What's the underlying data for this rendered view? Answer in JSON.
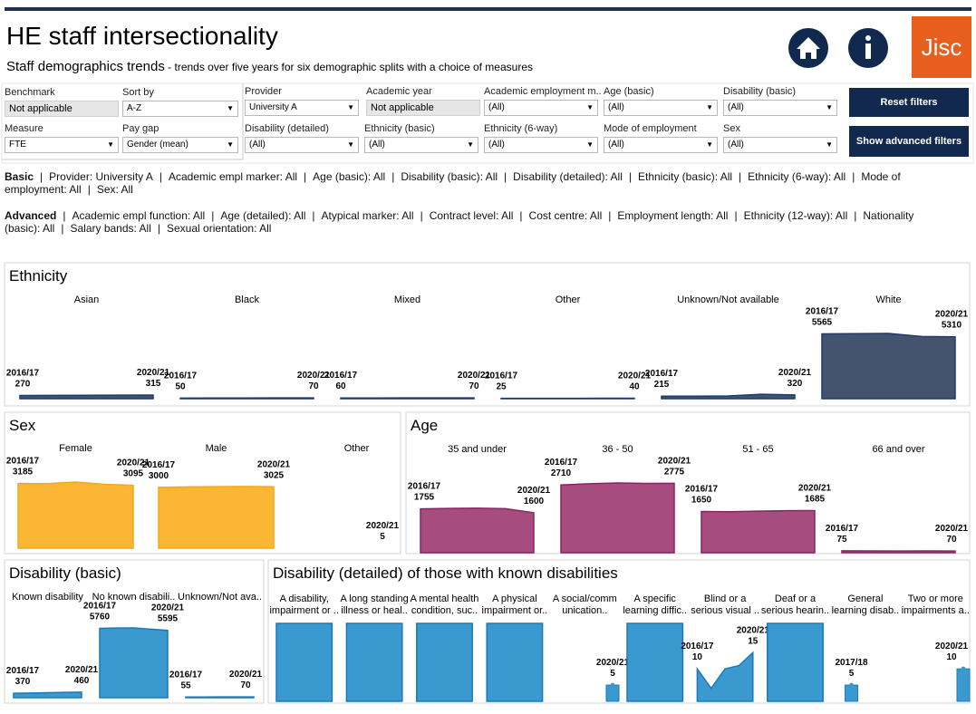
{
  "header": {
    "title": "HE staff intersectionality",
    "subtitle_bold": "Staff demographics trends",
    "subtitle": " - trends over five years for six demographic splits with a choice of measures",
    "logo": "Jisc"
  },
  "filters": [
    {
      "label": "Benchmark",
      "value": "Not applicable",
      "disabled": true
    },
    {
      "label": "Sort by",
      "value": "A-Z"
    },
    {
      "label": "Provider",
      "value": "University A"
    },
    {
      "label": "Academic year",
      "value": "Not applicable",
      "disabled": true
    },
    {
      "label": "Academic employment m..",
      "value": "(All)"
    },
    {
      "label": "Age (basic)",
      "value": "(All)"
    },
    {
      "label": "Disability (basic)",
      "value": "(All)"
    },
    {
      "label": "Measure",
      "value": "FTE"
    },
    {
      "label": "Pay gap",
      "value": "Gender (mean)"
    },
    {
      "label": "Disability (detailed)",
      "value": "(All)"
    },
    {
      "label": "Ethnicity (basic)",
      "value": "(All)"
    },
    {
      "label": "Ethnicity (6-way)",
      "value": "(All)"
    },
    {
      "label": "Mode of employment",
      "value": "(All)"
    },
    {
      "label": "Sex",
      "value": "(All)"
    }
  ],
  "buttons": [
    "Reset filters",
    "Show advanced filters"
  ],
  "summaries": [
    {
      "label": "Basic",
      "items": [
        "Provider: University A",
        "Academic empl marker: All",
        "Age (basic): All",
        "Disability (basic): All",
        "Disability (detailed): All",
        "Ethnicity (basic): All",
        "Ethnicity (6-way): All",
        "Mode of employment: All",
        "Sex: All"
      ]
    },
    {
      "label": "Advanced",
      "items": [
        "Academic empl function: All",
        "Age (detailed): All",
        "Atypical marker: All",
        "Contract level: All",
        "Cost centre: All",
        "Employment length: All",
        "Ethnicity (12-way): All",
        "Nationality (basic): All",
        "Salary bands: All",
        "Sexual orientation: All"
      ]
    }
  ],
  "panels": [
    {
      "type": "area",
      "title": "Ethnicity",
      "color": "#44546f",
      "line": "#1f3a6a",
      "items": [
        {
          "name": [
            "Asian"
          ],
          "years": [
            "2016/17",
            null,
            null,
            null,
            "2020/21"
          ],
          "values": [
            270,
            285,
            295,
            305,
            315
          ]
        },
        {
          "name": [
            "Black"
          ],
          "years": [
            "2016/17",
            null,
            null,
            null,
            "2020/21"
          ],
          "values": [
            50,
            55,
            60,
            65,
            70
          ]
        },
        {
          "name": [
            "Mixed"
          ],
          "years": [
            "2016/17",
            null,
            null,
            null,
            "2020/21"
          ],
          "values": [
            60,
            62,
            65,
            68,
            70
          ]
        },
        {
          "name": [
            "Other"
          ],
          "years": [
            "2016/17",
            null,
            null,
            null,
            "2020/21"
          ],
          "values": [
            25,
            28,
            32,
            36,
            40
          ]
        },
        {
          "name": [
            "Unknown/Not available"
          ],
          "years": [
            "2016/17",
            null,
            null,
            null,
            "2020/21"
          ],
          "values": [
            215,
            210,
            230,
            380,
            320
          ]
        },
        {
          "name": [
            "White"
          ],
          "years": [
            "2016/17",
            null,
            null,
            null,
            "2020/21"
          ],
          "values": [
            5565,
            5580,
            5600,
            5340,
            5310
          ]
        }
      ]
    },
    {
      "type": "area",
      "title": "Sex",
      "color": "#fbb733",
      "line": "#f2a81c",
      "items": [
        {
          "name": [
            "Female"
          ],
          "years": [
            "2016/17",
            null,
            null,
            null,
            "2020/21"
          ],
          "values": [
            3185,
            3180,
            3260,
            3150,
            3095
          ]
        },
        {
          "name": [
            "Male"
          ],
          "years": [
            "2016/17",
            null,
            null,
            null,
            "2020/21"
          ],
          "values": [
            3000,
            3020,
            3030,
            3040,
            3025
          ]
        },
        {
          "name": [
            "Other"
          ],
          "years": [
            null,
            null,
            null,
            null,
            "2020/21"
          ],
          "values": [
            null,
            null,
            null,
            null,
            5
          ]
        }
      ]
    },
    {
      "type": "area",
      "title": "Age",
      "color": "#a64c7e",
      "line": "#8a2464",
      "items": [
        {
          "name": [
            "35 and under"
          ],
          "years": [
            "2016/17",
            null,
            null,
            null,
            "2020/21"
          ],
          "values": [
            1755,
            1770,
            1780,
            1760,
            1600
          ]
        },
        {
          "name": [
            "36 - 50"
          ],
          "years": [
            "2016/17",
            null,
            null,
            null,
            "2020/21"
          ],
          "values": [
            2710,
            2760,
            2790,
            2770,
            2775
          ]
        },
        {
          "name": [
            "51 - 65"
          ],
          "years": [
            "2016/17",
            null,
            null,
            null,
            "2020/21"
          ],
          "values": [
            1650,
            1640,
            1660,
            1680,
            1685
          ]
        },
        {
          "name": [
            "66 and over"
          ],
          "years": [
            "2016/17",
            null,
            null,
            null,
            "2020/21"
          ],
          "values": [
            75,
            72,
            70,
            71,
            70
          ]
        }
      ]
    },
    {
      "type": "area",
      "title": "Disability (basic)",
      "color": "#3a9ad0",
      "line": "#1a7ab8",
      "items": [
        {
          "name": [
            "Known disability"
          ],
          "years": [
            "2016/17",
            null,
            null,
            null,
            "2020/21"
          ],
          "values": [
            370,
            390,
            410,
            440,
            460
          ]
        },
        {
          "name": [
            "No known disabili.."
          ],
          "years": [
            "2016/17",
            null,
            null,
            null,
            "2020/21"
          ],
          "values": [
            5760,
            5790,
            5800,
            5700,
            5595
          ]
        },
        {
          "name": [
            "Unknown/Not ava.."
          ],
          "years": [
            "2016/17",
            null,
            null,
            null,
            "2020/21"
          ],
          "values": [
            55,
            58,
            62,
            66,
            70
          ]
        }
      ]
    },
    {
      "type": "area",
      "title": "Disability (detailed) of those with known disabilities",
      "color": "#3a9ad0",
      "line": "#1a7ab8",
      "items": [
        {
          "name": [
            "A disability,",
            "impairment or .."
          ],
          "years": [
            null,
            null,
            null,
            null,
            null
          ],
          "values": [
            24,
            24,
            24,
            24,
            24
          ]
        },
        {
          "name": [
            "A long standing",
            "illness or heal.."
          ],
          "years": [
            null,
            null,
            null,
            null,
            null
          ],
          "values": [
            24,
            24,
            24,
            24,
            24
          ]
        },
        {
          "name": [
            "A mental health",
            "condition, suc.."
          ],
          "years": [
            null,
            null,
            null,
            null,
            null
          ],
          "values": [
            24,
            24,
            24,
            24,
            24
          ]
        },
        {
          "name": [
            "A physical",
            "impairment or.."
          ],
          "years": [
            null,
            null,
            null,
            null,
            null
          ],
          "values": [
            24,
            24,
            24,
            24,
            24
          ]
        },
        {
          "name": [
            "A social/comm",
            "unication.."
          ],
          "years": [
            null,
            null,
            null,
            null,
            "2020/21"
          ],
          "values": [
            null,
            null,
            null,
            null,
            5
          ]
        },
        {
          "name": [
            "A specific",
            "learning diffic.."
          ],
          "years": [
            null,
            null,
            null,
            null,
            null
          ],
          "values": [
            24,
            24,
            24,
            24,
            24
          ]
        },
        {
          "name": [
            "Blind or a",
            "serious visual .."
          ],
          "years": [
            "2016/17",
            null,
            null,
            null,
            "2020/21"
          ],
          "values": [
            10,
            4,
            10,
            11,
            15
          ]
        },
        {
          "name": [
            "Deaf or a",
            "serious hearin.."
          ],
          "years": [
            null,
            null,
            null,
            null,
            null
          ],
          "values": [
            24,
            24,
            24,
            24,
            24
          ]
        },
        {
          "name": [
            "General",
            "learning disab.."
          ],
          "years": [
            null,
            "2017/18",
            null,
            null,
            null
          ],
          "values": [
            null,
            5,
            null,
            null,
            null
          ]
        },
        {
          "name": [
            "Two or more",
            "impairments a.."
          ],
          "years": [
            null,
            null,
            null,
            null,
            "2020/21"
          ],
          "values": [
            null,
            null,
            null,
            null,
            10
          ]
        }
      ]
    }
  ]
}
